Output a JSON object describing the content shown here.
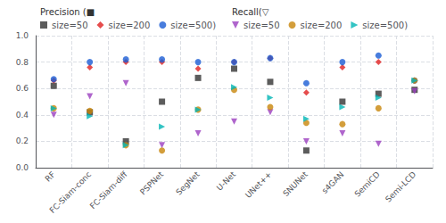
{
  "chart_data": {
    "type": "scatter",
    "categories": [
      "RF",
      "FC-Siam-conc",
      "FC-Siam-diff",
      "PSPNet",
      "SegNet",
      "U-Net",
      "UNet++",
      "SNUNet",
      "s4GAN",
      "SemiCD",
      "Semi-LCD"
    ],
    "series": [
      {
        "name": "size=50",
        "group": "Precision (■",
        "color": "#333333",
        "marker": "square",
        "values": [
          0.62,
          0.42,
          0.2,
          0.5,
          0.68,
          0.75,
          0.65,
          0.13,
          0.5,
          0.56,
          0.59
        ]
      },
      {
        "name": "size=200",
        "group": "Precision (■",
        "color": "#e02020",
        "marker": "diamond",
        "values": [
          0.66,
          0.76,
          0.8,
          0.8,
          0.75,
          0.8,
          0.83,
          0.57,
          0.76,
          0.8,
          0.66
        ]
      },
      {
        "name": "size=500)",
        "group": "Precision (■",
        "color": "#1a5cd4",
        "marker": "circle",
        "values": [
          0.67,
          0.8,
          0.82,
          0.82,
          0.8,
          0.8,
          0.83,
          0.64,
          0.8,
          0.85,
          0.66
        ]
      },
      {
        "name": "size=50",
        "group": "Recall(▽",
        "color": "#9b3fbf",
        "marker": "triangle_down",
        "values": [
          0.4,
          0.54,
          0.64,
          0.17,
          0.26,
          0.35,
          0.42,
          0.2,
          0.26,
          0.18,
          0.58
        ]
      },
      {
        "name": "size=200",
        "group": "Recall(▽",
        "color": "#c8860a",
        "marker": "circle",
        "values": [
          0.45,
          0.43,
          0.17,
          0.13,
          0.44,
          0.59,
          0.46,
          0.34,
          0.33,
          0.45,
          0.66
        ]
      },
      {
        "name": "size=500)",
        "group": "Recall(▽",
        "color": "#00b5b5",
        "marker": "triangle_right",
        "values": [
          0.45,
          0.39,
          0.17,
          0.31,
          0.44,
          0.61,
          0.53,
          0.37,
          0.46,
          0.53,
          0.66
        ]
      }
    ],
    "ylim": [
      0.0,
      1.0
    ],
    "yticks": [
      {
        "value": 0.0,
        "label": "0.0"
      },
      {
        "value": 0.2,
        "label": "0.2"
      },
      {
        "value": 0.4,
        "label": "0.4"
      },
      {
        "value": 0.6,
        "label": "0.6"
      },
      {
        "value": 0.8,
        "label": "0.8"
      },
      {
        "value": 1.0,
        "label": "1.0"
      }
    ],
    "grid": true,
    "legend": "upper left"
  }
}
